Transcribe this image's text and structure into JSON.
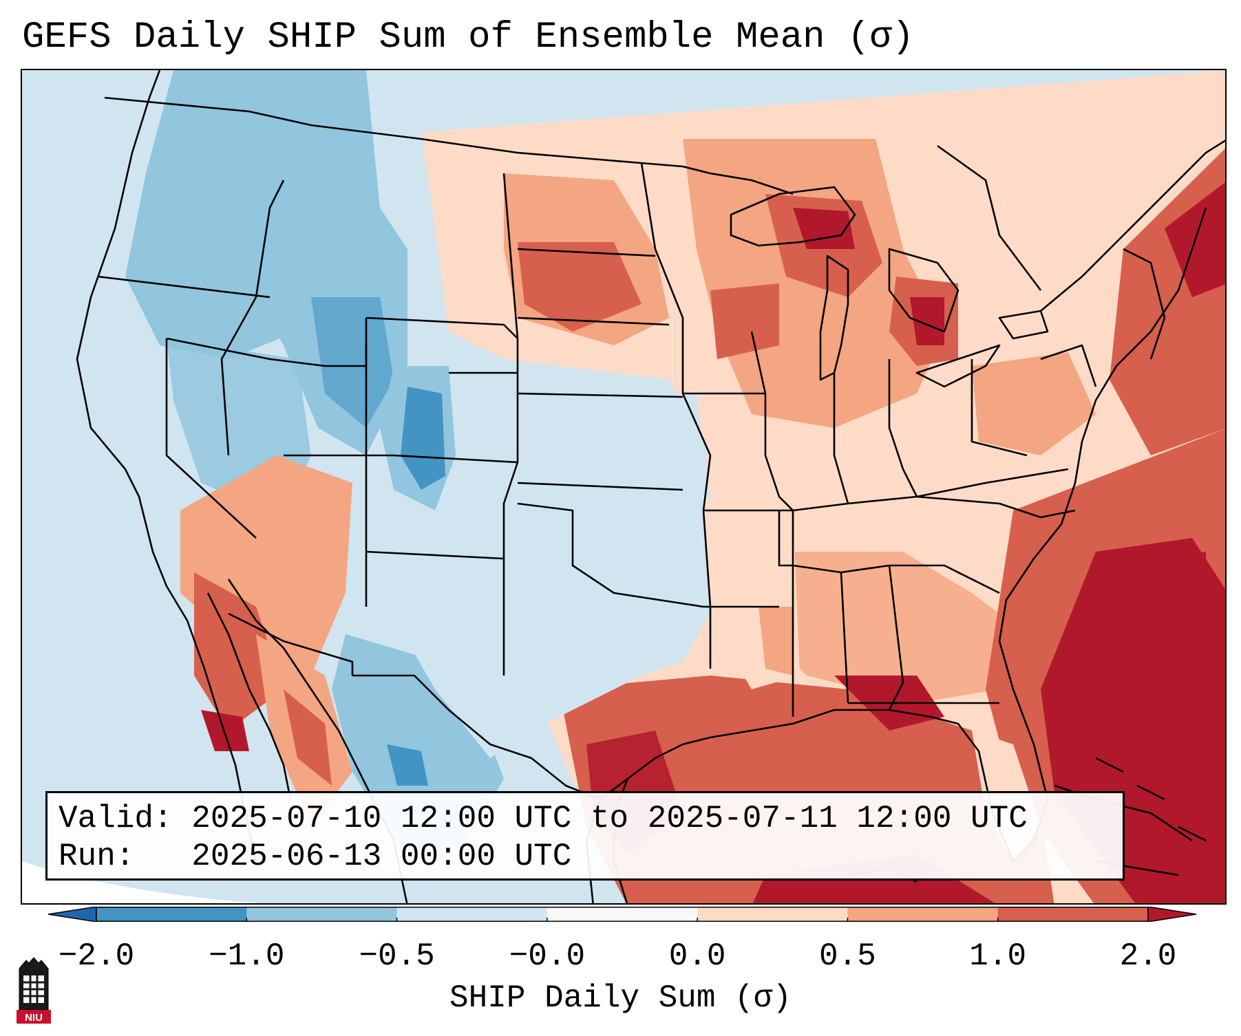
{
  "title": "GEFS Daily SHIP Sum of Ensemble Mean (σ)",
  "info": {
    "valid_label": "Valid:",
    "valid_value": "2025-07-10 12:00 UTC to 2025-07-11 12:00 UTC",
    "run_label": "Run:",
    "run_value": "2025-06-13 00:00 UTC"
  },
  "colorbar": {
    "label": "SHIP Daily Sum (σ)",
    "ticks": [
      "−2.0",
      "−1.0",
      "−0.5",
      "−0.0",
      "0.0",
      "0.5",
      "1.0",
      "2.0"
    ],
    "bins": [
      {
        "color": "#4393c3"
      },
      {
        "color": "#92c5de"
      },
      {
        "color": "#d1e5f0"
      },
      {
        "color": "#f7f7f7"
      },
      {
        "color": "#fddbc7"
      },
      {
        "color": "#f4a582"
      },
      {
        "color": "#d6604d"
      }
    ],
    "under_color": "#2166ac",
    "over_color": "#b2182b"
  },
  "map": {
    "projection": "Lambert Conformal",
    "region": "CONUS",
    "dominant_signal": "Positive anomalies over the Gulf of Mexico, Southeast, Great Lakes and Northeast; negative anomalies over the Intermountain West and Rockies"
  },
  "logo": {
    "icon": "university-tower-icon",
    "text": "NIU",
    "color": "#c8102e"
  }
}
